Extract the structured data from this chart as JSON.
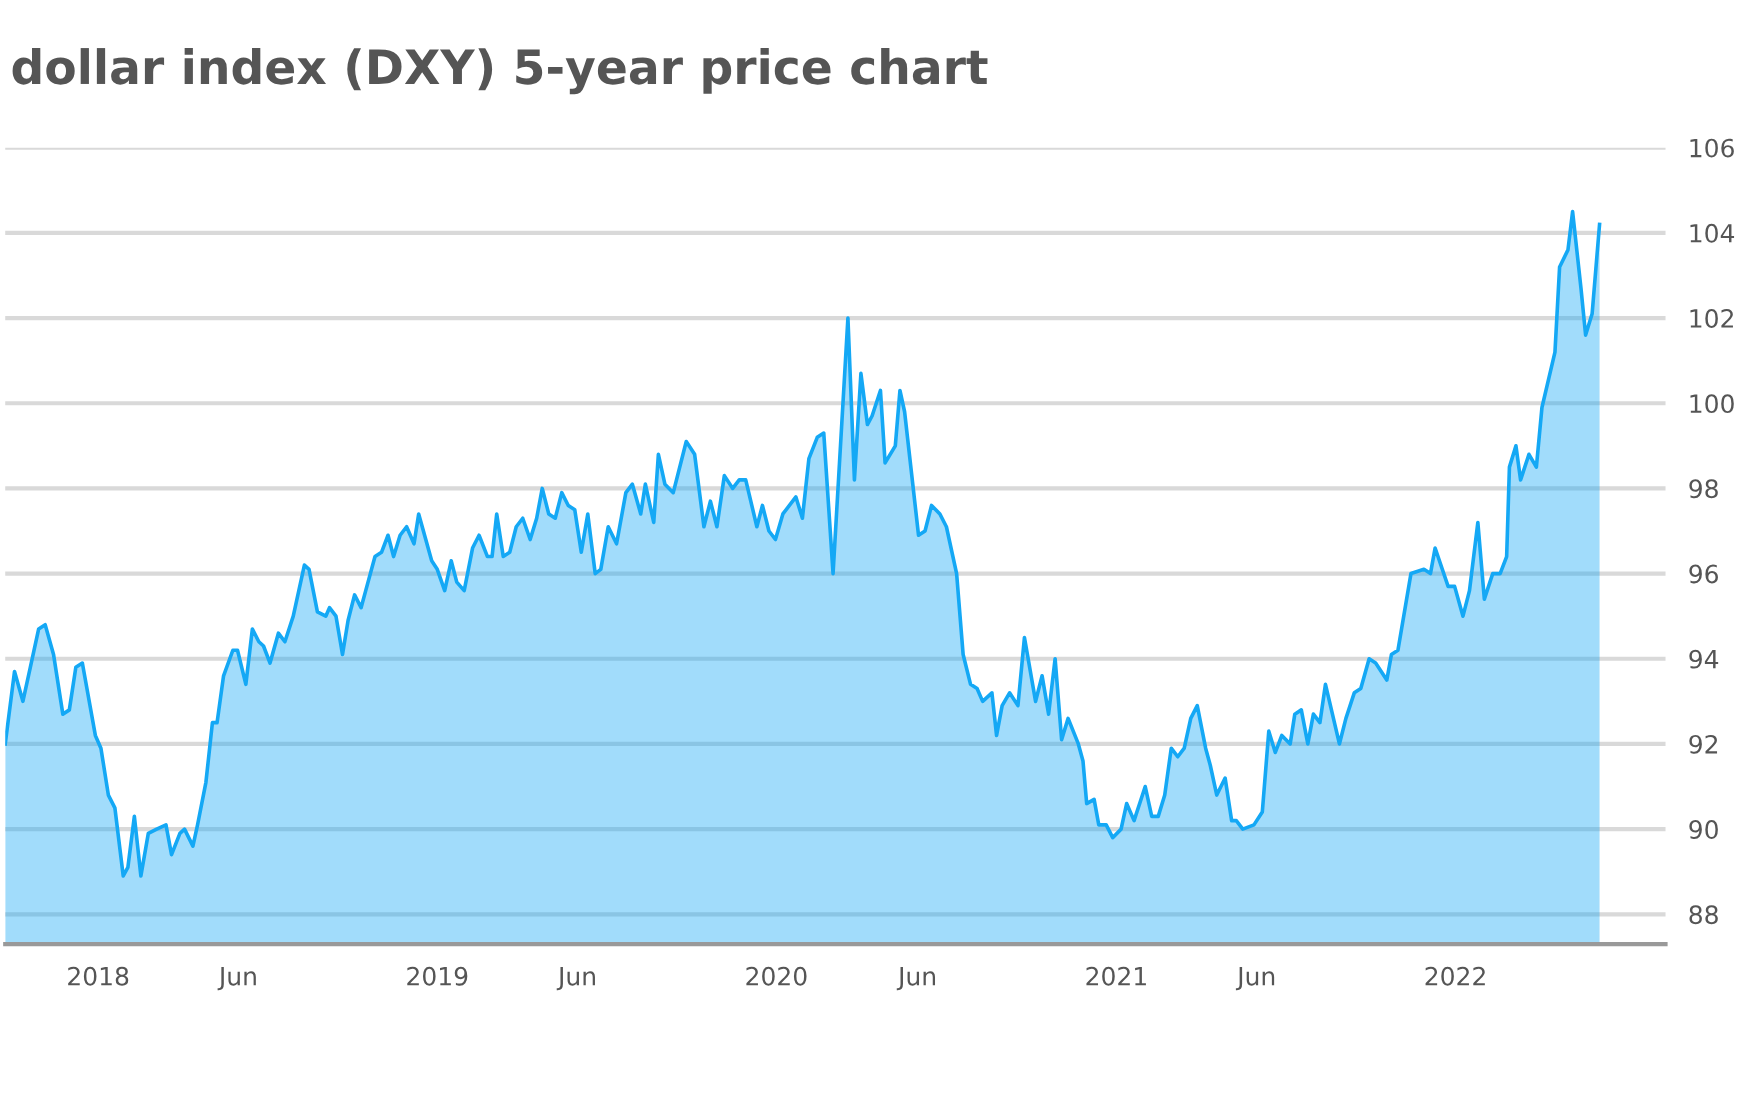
{
  "chart_data": {
    "type": "area",
    "title": "dollar index (DXY) 5-year price chart",
    "series": [
      {
        "color": "#14a8f5",
        "x": [
          "2017-09-23",
          "2017-10-03",
          "2017-10-12",
          "2017-10-20",
          "2017-10-29",
          "2017-11-05",
          "2017-11-14",
          "2017-11-24",
          "2017-12-01",
          "2017-12-08",
          "2017-12-15",
          "2017-12-29",
          "2018-01-04",
          "2018-01-12",
          "2018-01-19",
          "2018-01-28",
          "2018-02-02",
          "2018-02-09",
          "2018-02-16",
          "2018-02-24",
          "2018-03-05",
          "2018-03-15",
          "2018-03-21",
          "2018-03-30",
          "2018-04-04",
          "2018-04-13",
          "2018-04-18",
          "2018-04-27",
          "2018-05-04",
          "2018-05-09",
          "2018-05-16",
          "2018-05-26",
          "2018-05-31",
          "2018-06-09",
          "2018-06-16",
          "2018-06-23",
          "2018-06-28",
          "2018-07-05",
          "2018-07-14",
          "2018-07-21",
          "2018-07-30",
          "2018-08-11",
          "2018-08-16",
          "2018-08-25",
          "2018-09-03",
          "2018-09-07",
          "2018-09-14",
          "2018-09-21",
          "2018-09-27",
          "2018-10-04",
          "2018-10-11",
          "2018-10-16",
          "2018-10-26",
          "2018-11-02",
          "2018-11-09",
          "2018-11-15",
          "2018-11-22",
          "2018-11-29",
          "2018-12-07",
          "2018-12-12",
          "2018-12-26",
          "2019-01-01",
          "2019-01-09",
          "2019-01-16",
          "2019-01-22",
          "2019-01-30",
          "2019-02-08",
          "2019-02-15",
          "2019-02-24",
          "2019-03-01",
          "2019-03-06",
          "2019-03-13",
          "2019-03-20",
          "2019-03-27",
          "2019-04-03",
          "2019-04-11",
          "2019-04-18",
          "2019-04-24",
          "2019-05-01",
          "2019-05-08",
          "2019-05-15",
          "2019-05-22",
          "2019-05-29",
          "2019-06-05",
          "2019-06-12",
          "2019-06-20",
          "2019-06-26",
          "2019-07-04",
          "2019-07-13",
          "2019-07-23",
          "2019-07-30",
          "2019-08-08",
          "2019-08-13",
          "2019-08-22",
          "2019-08-27",
          "2019-09-03",
          "2019-09-12",
          "2019-09-26",
          "2019-10-05",
          "2019-10-15",
          "2019-10-22",
          "2019-10-29",
          "2019-11-06",
          "2019-11-15",
          "2019-11-22",
          "2019-11-29",
          "2019-12-11",
          "2019-12-17",
          "2019-12-24",
          "2019-12-31",
          "2020-01-08",
          "2020-01-22",
          "2020-01-29",
          "2020-02-05",
          "2020-02-14",
          "2020-02-21",
          "2020-03-02",
          "2020-03-18",
          "2020-03-25",
          "2020-04-01",
          "2020-04-08",
          "2020-04-13",
          "2020-04-22",
          "2020-04-27",
          "2020-05-08",
          "2020-05-13",
          "2020-05-18",
          "2020-06-02",
          "2020-06-09",
          "2020-06-16",
          "2020-06-25",
          "2020-07-02",
          "2020-07-13",
          "2020-07-20",
          "2020-07-28",
          "2020-08-04",
          "2020-08-10",
          "2020-08-20",
          "2020-08-25",
          "2020-08-31",
          "2020-09-08",
          "2020-09-17",
          "2020-09-24",
          "2020-10-06",
          "2020-10-13",
          "2020-10-20",
          "2020-10-27",
          "2020-11-03",
          "2020-11-10",
          "2020-11-21",
          "2020-11-26",
          "2020-11-30",
          "2020-12-08",
          "2020-12-13",
          "2020-12-21",
          "2020-12-28",
          "2021-01-06",
          "2021-01-12",
          "2021-01-20",
          "2021-02-01",
          "2021-02-08",
          "2021-02-15",
          "2021-02-22",
          "2021-03-01",
          "2021-03-08",
          "2021-03-15",
          "2021-03-22",
          "2021-03-29",
          "2021-04-07",
          "2021-04-12",
          "2021-04-19",
          "2021-04-28",
          "2021-05-05",
          "2021-05-10",
          "2021-05-17",
          "2021-05-29",
          "2021-06-07",
          "2021-06-14",
          "2021-06-21",
          "2021-06-28",
          "2021-07-07",
          "2021-07-12",
          "2021-07-19",
          "2021-07-26",
          "2021-08-01",
          "2021-08-08",
          "2021-08-14",
          "2021-08-29",
          "2021-09-05",
          "2021-09-14",
          "2021-09-21",
          "2021-09-30",
          "2021-10-07",
          "2021-10-19",
          "2021-10-24",
          "2021-10-31",
          "2021-11-14",
          "2021-11-28",
          "2021-12-05",
          "2021-12-10",
          "2021-12-24",
          "2021-12-31",
          "2022-01-09",
          "2022-01-16",
          "2022-01-25",
          "2022-02-01",
          "2022-02-10",
          "2022-02-18",
          "2022-02-25",
          "2022-02-28",
          "2022-03-07",
          "2022-03-12",
          "2022-03-21",
          "2022-03-29",
          "2022-04-04",
          "2022-04-18",
          "2022-04-23",
          "2022-05-02",
          "2022-05-07",
          "2022-05-16",
          "2022-05-21",
          "2022-05-28",
          "2022-06-05"
        ],
        "values": [
          92.0,
          93.7,
          93.0,
          93.8,
          94.7,
          94.8,
          94.1,
          92.7,
          92.8,
          93.8,
          93.9,
          92.2,
          91.9,
          90.8,
          90.5,
          88.9,
          89.1,
          90.3,
          88.9,
          89.9,
          90.0,
          90.1,
          89.4,
          89.9,
          90.0,
          89.6,
          90.1,
          91.1,
          92.5,
          92.5,
          93.6,
          94.2,
          94.2,
          93.4,
          94.7,
          94.4,
          94.3,
          93.9,
          94.6,
          94.4,
          95.0,
          96.2,
          96.1,
          95.1,
          95.0,
          95.2,
          95.0,
          94.1,
          94.9,
          95.5,
          95.2,
          95.6,
          96.4,
          96.5,
          96.9,
          96.4,
          96.9,
          97.1,
          96.7,
          97.4,
          96.3,
          96.1,
          95.6,
          96.3,
          95.8,
          95.6,
          96.6,
          96.9,
          96.4,
          96.4,
          97.4,
          96.4,
          96.5,
          97.1,
          97.3,
          96.8,
          97.3,
          98.0,
          97.4,
          97.3,
          97.9,
          97.6,
          97.5,
          96.5,
          97.4,
          96.0,
          96.1,
          97.1,
          96.7,
          97.9,
          98.1,
          97.4,
          98.1,
          97.2,
          98.8,
          98.1,
          97.9,
          99.1,
          98.8,
          97.1,
          97.7,
          97.1,
          98.3,
          98.0,
          98.2,
          98.2,
          97.1,
          97.6,
          97.0,
          96.8,
          97.4,
          97.8,
          97.3,
          98.7,
          99.2,
          99.3,
          96.0,
          102.0,
          98.2,
          100.7,
          99.5,
          99.7,
          100.3,
          98.6,
          99.0,
          100.3,
          99.8,
          96.9,
          97.0,
          97.6,
          97.4,
          97.1,
          96.0,
          94.1,
          93.4,
          93.3,
          93.0,
          93.2,
          92.2,
          92.9,
          93.2,
          92.9,
          94.5,
          93.0,
          93.6,
          92.7,
          94.0,
          92.1,
          92.6,
          92.0,
          91.6,
          90.6,
          90.7,
          90.1,
          90.1,
          89.8,
          90.0,
          90.6,
          90.2,
          91.0,
          90.3,
          90.3,
          90.8,
          91.9,
          91.7,
          91.9,
          92.6,
          92.9,
          91.9,
          91.5,
          90.8,
          91.2,
          90.2,
          90.2,
          90.0,
          90.1,
          90.4,
          92.3,
          91.8,
          92.2,
          92.0,
          92.7,
          92.8,
          92.0,
          92.7,
          92.5,
          93.4,
          92.0,
          92.6,
          93.2,
          93.3,
          94.0,
          93.9,
          93.5,
          94.1,
          94.2,
          96.0,
          96.1,
          96.0,
          96.6,
          95.7,
          95.7,
          95.0,
          95.6,
          97.2,
          95.4,
          96.0,
          96.0,
          96.4,
          98.5,
          99.0,
          98.2,
          98.8,
          98.5,
          99.9,
          101.2,
          103.2,
          103.6,
          104.5,
          102.7,
          101.6,
          102.1,
          104.2
        ]
      }
    ],
    "xlim": [
      "2017-09-23",
      "2022-08-15"
    ],
    "xticks": [
      {
        "value": "2018-01-01",
        "label": "2018"
      },
      {
        "value": "2018-06-01",
        "label": "Jun"
      },
      {
        "value": "2019-01-01",
        "label": "2019"
      },
      {
        "value": "2019-06-01",
        "label": "Jun"
      },
      {
        "value": "2020-01-01",
        "label": "2020"
      },
      {
        "value": "2020-06-01",
        "label": "Jun"
      },
      {
        "value": "2021-01-01",
        "label": "2021"
      },
      {
        "value": "2021-06-01",
        "label": "Jun"
      },
      {
        "value": "2022-01-01",
        "label": "2022"
      }
    ],
    "ylim": [
      87.3,
      106
    ],
    "yticks": [
      88,
      90,
      92,
      94,
      96,
      98,
      100,
      102,
      104,
      106
    ],
    "grid": "y"
  }
}
